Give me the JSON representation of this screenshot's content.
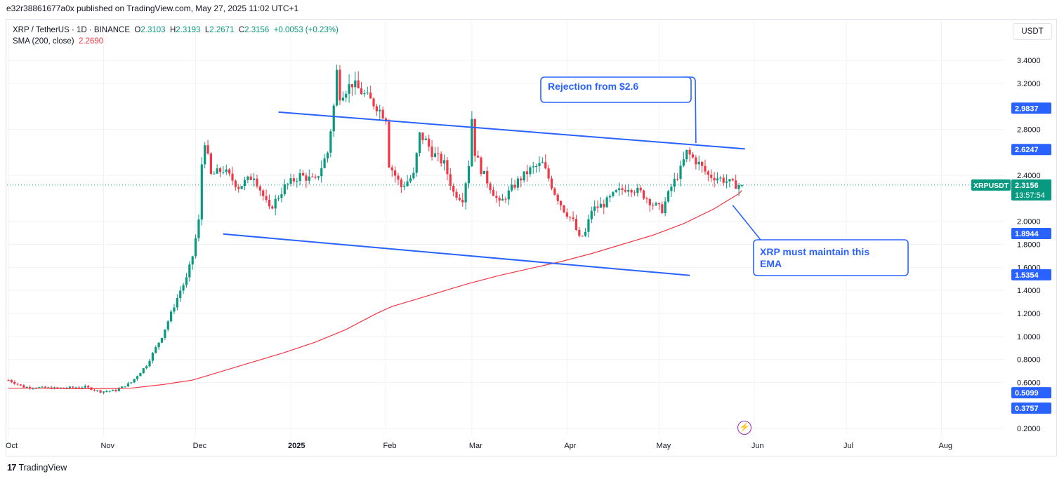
{
  "header": {
    "published": "e32r38861677a0x published on TradingView.com, May 27, 2025 11:02 UTC+1"
  },
  "legend": {
    "symbol": "XRP / TetherUS · 1D · BINANCE",
    "o_label": "O",
    "o": "2.3103",
    "h_label": "H",
    "h": "2.3193",
    "l_label": "L",
    "l": "2.2671",
    "c_label": "C",
    "c": "2.3156",
    "change": "+0.0053 (+0.23%)",
    "sma_label": "SMA (200, close)",
    "sma": "2.2690"
  },
  "currency": "USDT",
  "footer": {
    "brand": "TradingView",
    "logo": "17"
  },
  "colors": {
    "up": "#089981",
    "down": "#f23645",
    "sma": "#f23645",
    "annotation": "#2962ff",
    "label_blue": "#2962ff"
  },
  "chart_data": {
    "type": "candlestick",
    "title": "",
    "ylim": [
      0.1,
      3.55
    ],
    "y_ticks": [
      "3.4000",
      "3.2000",
      "2.8000",
      "2.4000",
      "2.0000",
      "1.8000",
      "1.6000",
      "1.4000",
      "1.2000",
      "1.0000",
      "0.8000",
      "0.6000",
      "0.2000"
    ],
    "x_ticks": [
      {
        "label": "Oct",
        "day": 0,
        "bold": false
      },
      {
        "label": "Nov",
        "day": 31,
        "bold": false
      },
      {
        "label": "Dec",
        "day": 61,
        "bold": false
      },
      {
        "label": "2025",
        "day": 92,
        "bold": true
      },
      {
        "label": "Feb",
        "day": 123,
        "bold": false
      },
      {
        "label": "Mar",
        "day": 151,
        "bold": false
      },
      {
        "label": "Apr",
        "day": 182,
        "bold": false
      },
      {
        "label": "May",
        "day": 212,
        "bold": false
      },
      {
        "label": "Jun",
        "day": 243,
        "bold": false
      },
      {
        "label": "Jul",
        "day": 273,
        "bold": false
      },
      {
        "label": "Aug",
        "day": 304,
        "bold": false
      }
    ],
    "price_labels": [
      {
        "value": 2.9837,
        "text": "2.9837"
      },
      {
        "value": 2.6247,
        "text": "2.6247"
      },
      {
        "value": 1.8944,
        "text": "1.8944"
      },
      {
        "value": 1.5354,
        "text": "1.5354"
      },
      {
        "value": 0.5099,
        "text": "0.5099"
      },
      {
        "value": 0.3757,
        "text": "0.3757"
      }
    ],
    "current": {
      "value": 2.3156,
      "text": "2.3156",
      "symbol": "XRPUSDT",
      "countdown": "13:57:54"
    },
    "trend_lines": [
      {
        "x1": 88,
        "y1": 2.95,
        "x2": 240,
        "y2": 2.63
      },
      {
        "x1": 70,
        "y1": 1.89,
        "x2": 222,
        "y2": 1.53
      }
    ],
    "annotations": [
      {
        "text": "Rejection from $2.6",
        "target_day": 224,
        "target_value": 2.68
      },
      {
        "text": "XRP must maintain this EMA",
        "target_day": 236,
        "target_value": 2.14
      }
    ],
    "sma_series": [
      [
        0,
        0.55
      ],
      [
        10,
        0.55
      ],
      [
        20,
        0.545
      ],
      [
        30,
        0.545
      ],
      [
        40,
        0.55
      ],
      [
        50,
        0.58
      ],
      [
        60,
        0.62
      ],
      [
        65,
        0.66
      ],
      [
        70,
        0.7
      ],
      [
        80,
        0.78
      ],
      [
        90,
        0.86
      ],
      [
        100,
        0.95
      ],
      [
        110,
        1.06
      ],
      [
        115,
        1.13
      ],
      [
        120,
        1.2
      ],
      [
        125,
        1.26
      ],
      [
        130,
        1.3
      ],
      [
        140,
        1.38
      ],
      [
        150,
        1.46
      ],
      [
        160,
        1.53
      ],
      [
        170,
        1.59
      ],
      [
        180,
        1.65
      ],
      [
        190,
        1.72
      ],
      [
        200,
        1.8
      ],
      [
        210,
        1.88
      ],
      [
        220,
        1.98
      ],
      [
        230,
        2.11
      ],
      [
        238,
        2.24
      ],
      [
        239,
        2.269
      ]
    ],
    "price_path": [
      [
        0,
        0.62
      ],
      [
        5,
        0.56
      ],
      [
        15,
        0.55
      ],
      [
        25,
        0.56
      ],
      [
        30,
        0.52
      ],
      [
        35,
        0.53
      ],
      [
        40,
        0.6
      ],
      [
        45,
        0.75
      ],
      [
        50,
        1.0
      ],
      [
        53,
        1.2
      ],
      [
        56,
        1.4
      ],
      [
        58,
        1.5
      ],
      [
        60,
        1.7
      ],
      [
        62,
        2.0
      ],
      [
        63,
        2.5
      ],
      [
        64,
        2.7
      ],
      [
        66,
        2.4
      ],
      [
        70,
        2.45
      ],
      [
        75,
        2.3
      ],
      [
        80,
        2.4
      ],
      [
        85,
        2.1
      ],
      [
        90,
        2.3
      ],
      [
        95,
        2.4
      ],
      [
        100,
        2.35
      ],
      [
        104,
        2.6
      ],
      [
        106,
        3.0
      ],
      [
        107,
        3.3
      ],
      [
        108,
        3.1
      ],
      [
        112,
        3.2
      ],
      [
        116,
        3.1
      ],
      [
        120,
        3.0
      ],
      [
        123,
        2.9
      ],
      [
        124,
        2.5
      ],
      [
        126,
        2.4
      ],
      [
        128,
        2.3
      ],
      [
        132,
        2.4
      ],
      [
        134,
        2.75
      ],
      [
        136,
        2.7
      ],
      [
        138,
        2.6
      ],
      [
        142,
        2.5
      ],
      [
        145,
        2.25
      ],
      [
        148,
        2.2
      ],
      [
        150,
        2.5
      ],
      [
        151,
        2.9
      ],
      [
        152,
        2.6
      ],
      [
        154,
        2.45
      ],
      [
        157,
        2.3
      ],
      [
        160,
        2.15
      ],
      [
        163,
        2.25
      ],
      [
        166,
        2.35
      ],
      [
        170,
        2.45
      ],
      [
        174,
        2.5
      ],
      [
        178,
        2.25
      ],
      [
        181,
        2.1
      ],
      [
        184,
        2.0
      ],
      [
        186,
        1.85
      ],
      [
        188,
        1.9
      ],
      [
        190,
        2.1
      ],
      [
        194,
        2.15
      ],
      [
        198,
        2.25
      ],
      [
        202,
        2.3
      ],
      [
        206,
        2.25
      ],
      [
        210,
        2.15
      ],
      [
        213,
        2.1
      ],
      [
        216,
        2.3
      ],
      [
        219,
        2.45
      ],
      [
        221,
        2.6
      ],
      [
        223,
        2.55
      ],
      [
        225,
        2.5
      ],
      [
        228,
        2.4
      ],
      [
        231,
        2.38
      ],
      [
        234,
        2.35
      ],
      [
        236,
        2.32
      ],
      [
        239,
        2.3156
      ]
    ]
  }
}
